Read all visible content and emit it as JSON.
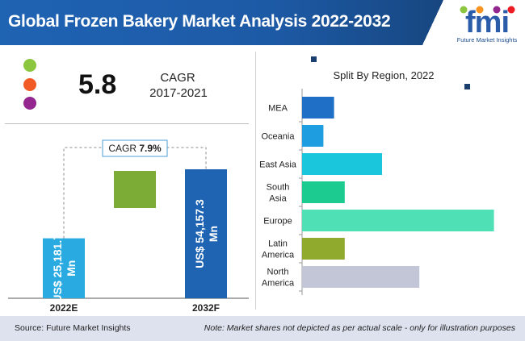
{
  "header": {
    "title": "Global Frozen Bakery Market Analysis 2022-2032"
  },
  "logo": {
    "mark": "fmi",
    "subtitle": "Future Market Insights"
  },
  "legend_dots": [
    "#8cc63f",
    "#f15a24",
    "#93278f"
  ],
  "kpi": {
    "value": "5.8",
    "label": "CAGR",
    "period": "2017-2021"
  },
  "chart_data": [
    {
      "type": "bar",
      "categories": [
        "2022E",
        "2032F"
      ],
      "values": [
        25181.7,
        54157.3
      ],
      "data_labels": [
        "US$ 25,181.7 Mn",
        "US$ 54,157.3 Mn"
      ],
      "unit": "US$ Mn",
      "colors": [
        "#29abe2",
        "#1f63b3"
      ],
      "connector_color": "#7cac35",
      "cagr_annotation": {
        "label": "CAGR",
        "value": "7.9%"
      }
    },
    {
      "type": "bar",
      "orientation": "horizontal",
      "title": "Split By Region, 2022",
      "categories": [
        "MEA",
        "Oceania",
        "East Asia",
        "South Asia",
        "Europe",
        "Latin America",
        "North America"
      ],
      "label_lines": [
        [
          "MEA"
        ],
        [
          "Oceania"
        ],
        [
          "East Asia"
        ],
        [
          "South",
          "Asia"
        ],
        [
          "Europe"
        ],
        [
          "Latin",
          "America"
        ],
        [
          "North",
          "America"
        ]
      ],
      "values": [
        6,
        4,
        15,
        8,
        36,
        8,
        22
      ],
      "colors": [
        "#1f6fc7",
        "#1e9ee0",
        "#1ac6dc",
        "#1ccb8f",
        "#4fe0b5",
        "#8faa2c",
        "#c2c6d6"
      ],
      "xlim": [
        0,
        40
      ]
    }
  ],
  "footer": {
    "source": "Source: Future Market Insights",
    "note": "Note: Market shares not depicted as per actual scale - only for illustration purposes"
  }
}
